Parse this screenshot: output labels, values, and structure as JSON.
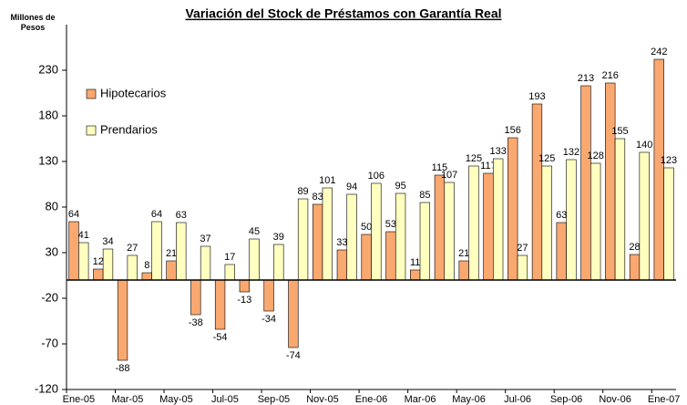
{
  "chart_data": {
    "type": "bar",
    "title": "Variación del Stock de Préstamos con Garantía Real",
    "y_label": "Millones de Pesos",
    "categories": [
      "Ene-05",
      null,
      "Mar-05",
      null,
      "May-05",
      null,
      "Jul-05",
      null,
      "Sep-05",
      null,
      "Nov-05",
      null,
      "Ene-06",
      null,
      "Mar-06",
      null,
      "May-06",
      null,
      "Jul-06",
      null,
      "Sep-06",
      null,
      "Nov-06",
      null,
      "Ene-07"
    ],
    "series": [
      {
        "name": "Hipotecarios",
        "color": "#f9a870",
        "values": [
          64,
          12,
          -88,
          8,
          21,
          -38,
          -54,
          -13,
          -34,
          -74,
          83,
          33,
          50,
          53,
          11,
          115,
          21,
          117,
          156,
          193,
          63,
          213,
          216,
          28,
          242
        ]
      },
      {
        "name": "Prendarios",
        "color": "#ffffc0",
        "values": [
          41,
          34,
          27,
          64,
          63,
          37,
          17,
          45,
          39,
          89,
          101,
          94,
          106,
          95,
          85,
          107,
          125,
          133,
          27,
          125,
          132,
          128,
          155,
          140,
          123
        ]
      }
    ],
    "ylim": [
      -120,
      280
    ],
    "yticks": [
      -120,
      -70,
      -20,
      30,
      80,
      130,
      180,
      230
    ],
    "legend": "upper left"
  }
}
